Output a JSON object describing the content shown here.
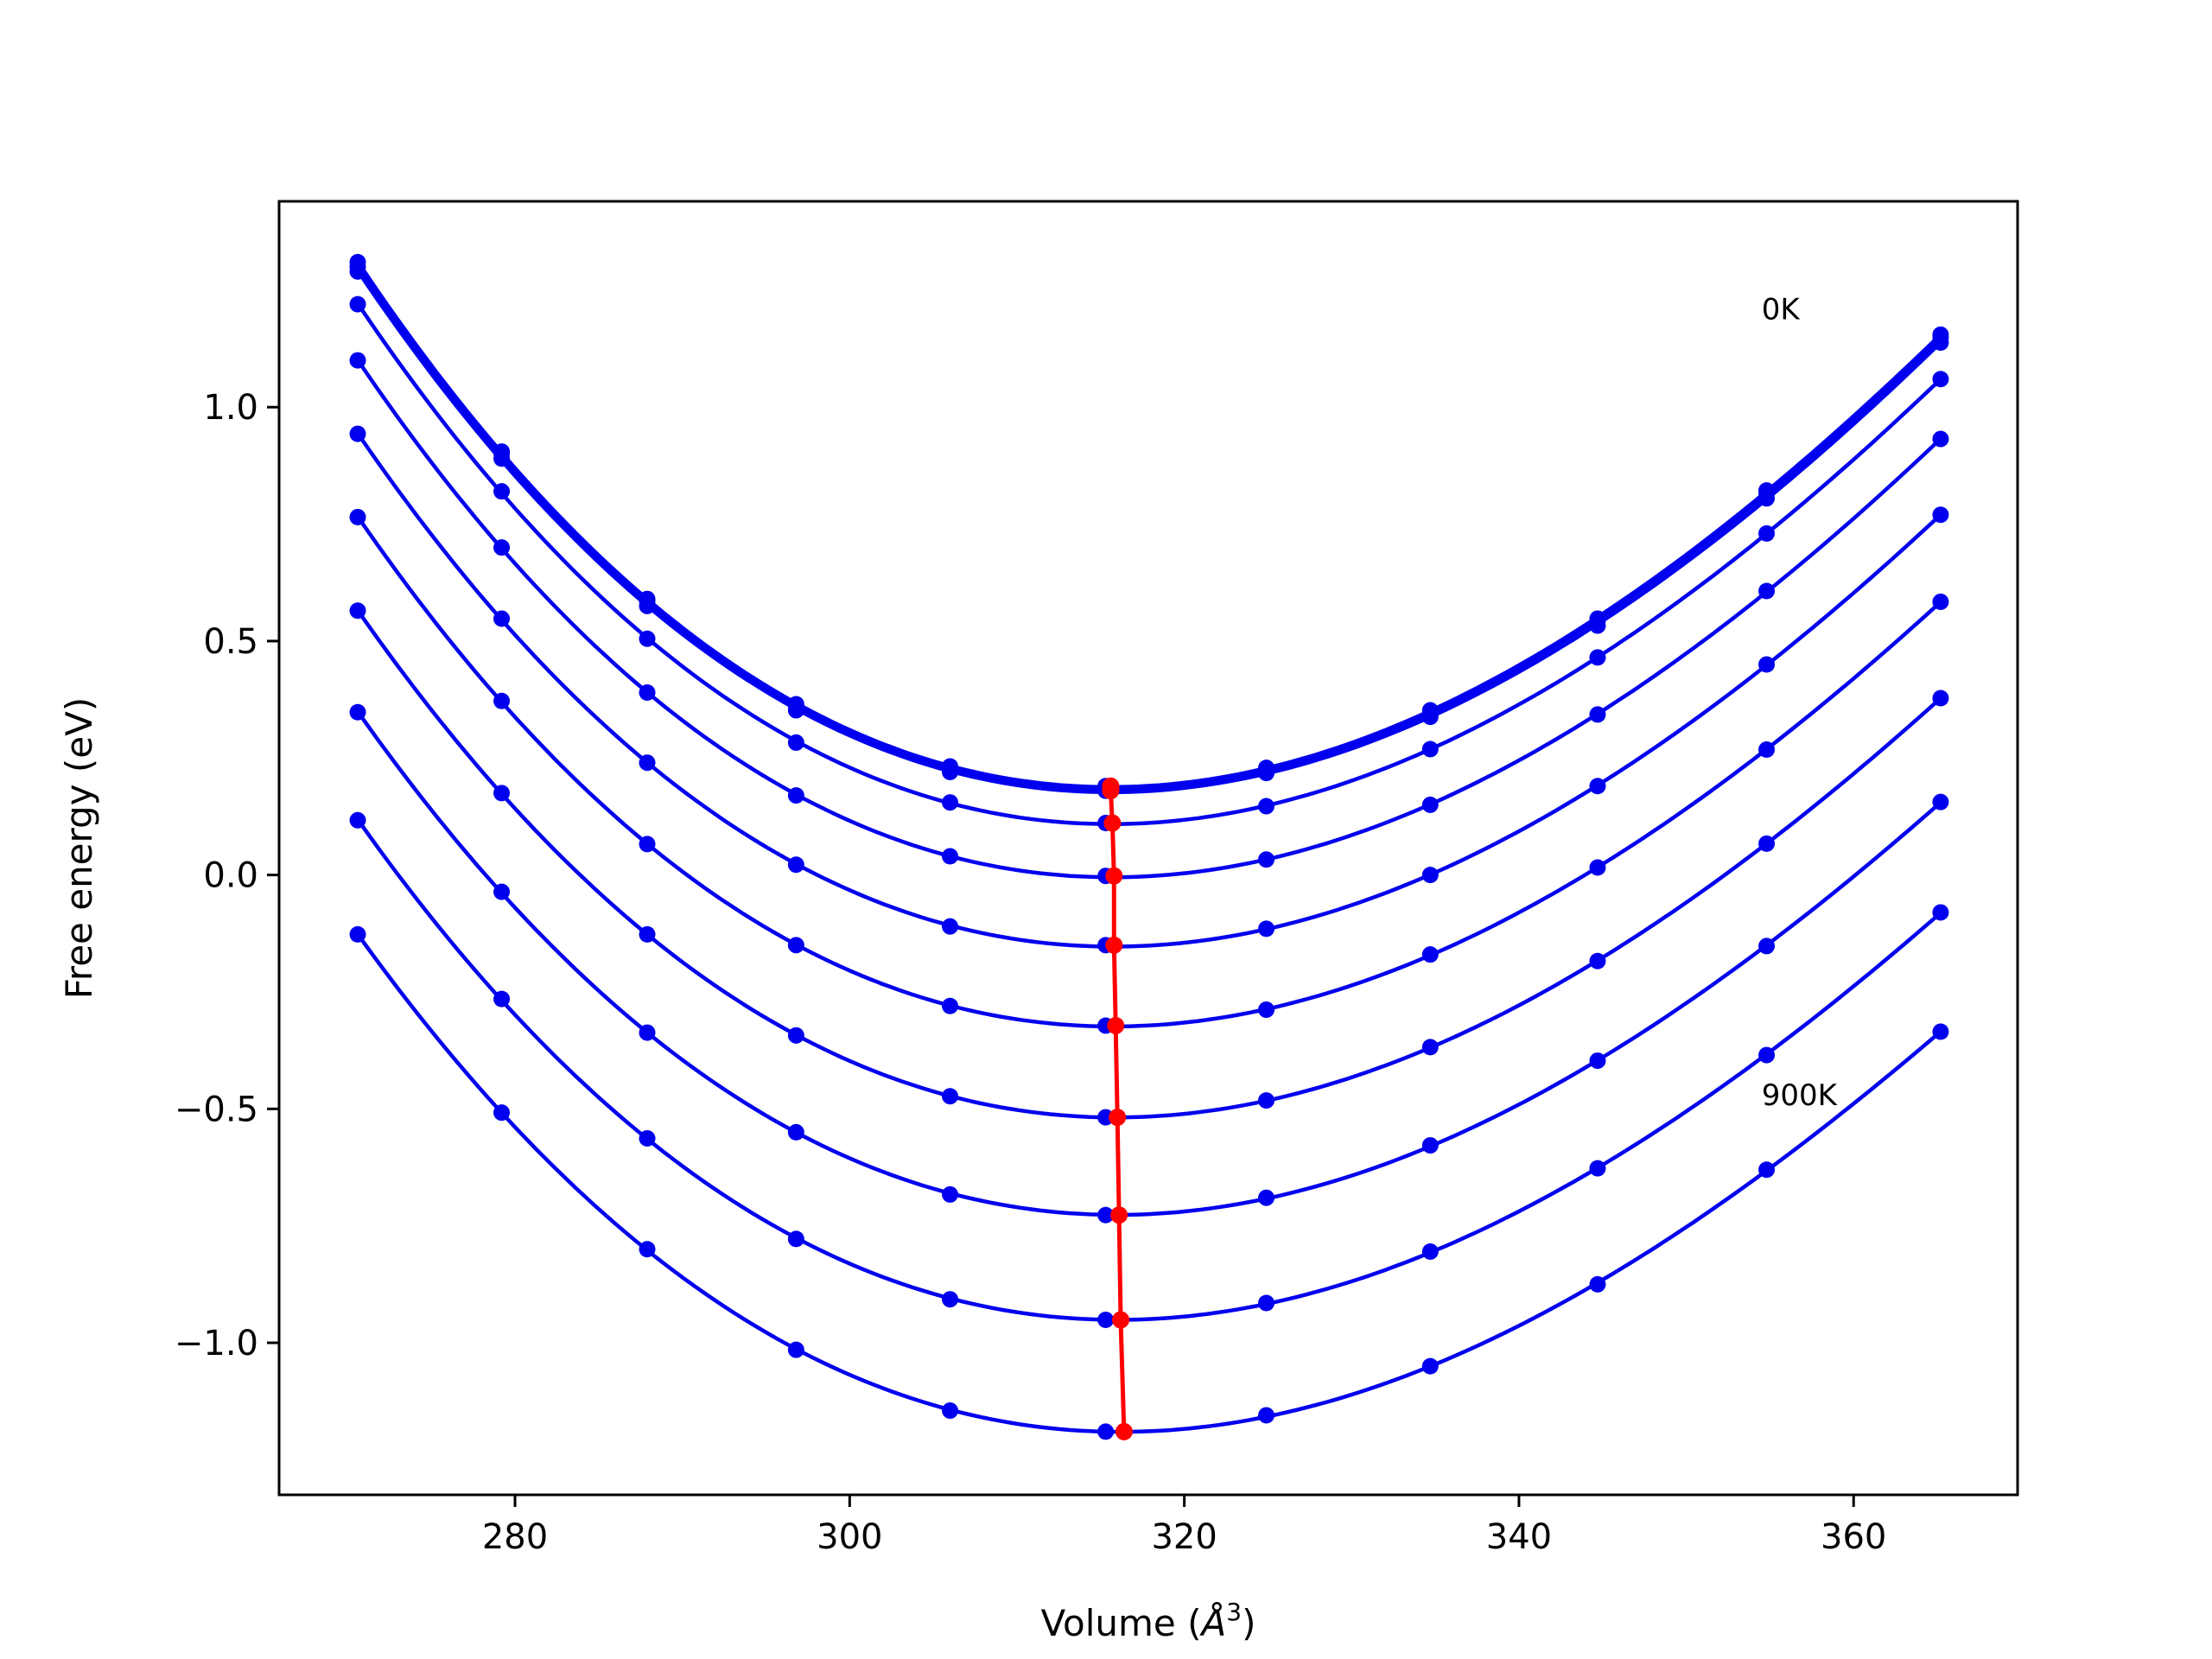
{
  "chart_data": {
    "type": "line",
    "title": "",
    "xlabel_main": "Volume (",
    "xlabel_unit": "Å",
    "xlabel_sup": "3",
    "xlabel_close": ")",
    "ylabel": "Free energy (eV)",
    "xlim": [
      265.9,
      369.8
    ],
    "ylim": [
      -1.325,
      1.44
    ],
    "xticks": [
      280,
      300,
      320,
      340,
      360
    ],
    "xtick_labels": [
      "280",
      "300",
      "320",
      "340",
      "360"
    ],
    "yticks": [
      -1.0,
      -0.5,
      0.0,
      0.5,
      1.0
    ],
    "ytick_labels": [
      "−1.0",
      "−0.5",
      "0.0",
      "0.5",
      "1.0"
    ],
    "grid": false,
    "annotations": [
      {
        "text": "0K",
        "x": 354.5,
        "y": 1.21
      },
      {
        "text": "900K",
        "x": 354.5,
        "y": -0.47
      }
    ],
    "x": [
      270.6,
      279.2,
      287.9,
      296.8,
      306.0,
      315.3,
      324.9,
      334.7,
      344.7,
      354.8,
      365.2
    ],
    "series": [
      {
        "values": [
          1.31,
          0.905,
          0.59,
          0.365,
          0.232,
          0.19,
          0.229,
          0.352,
          0.548,
          0.822,
          1.155
        ]
      },
      {
        "values": [
          1.3,
          0.9,
          0.585,
          0.36,
          0.228,
          0.188,
          0.225,
          0.347,
          0.543,
          0.815,
          1.148
        ]
      },
      {
        "values": [
          1.29,
          0.89,
          0.575,
          0.352,
          0.22,
          0.18,
          0.218,
          0.338,
          0.533,
          0.805,
          1.138
        ]
      },
      {
        "values": [
          1.22,
          0.82,
          0.505,
          0.283,
          0.155,
          0.111,
          0.147,
          0.269,
          0.465,
          0.73,
          1.06
        ]
      },
      {
        "values": [
          1.1,
          0.7,
          0.39,
          0.17,
          0.04,
          -0.002,
          0.033,
          0.15,
          0.343,
          0.607,
          0.932
        ]
      },
      {
        "values": [
          0.943,
          0.548,
          0.24,
          0.022,
          -0.11,
          -0.15,
          -0.115,
          0.0,
          0.19,
          0.45,
          0.77
        ]
      },
      {
        "values": [
          0.765,
          0.372,
          0.066,
          -0.15,
          -0.28,
          -0.322,
          -0.288,
          -0.17,
          0.016,
          0.268,
          0.584
        ]
      },
      {
        "values": [
          0.565,
          0.175,
          -0.127,
          -0.343,
          -0.473,
          -0.518,
          -0.482,
          -0.368,
          -0.184,
          0.067,
          0.378
        ]
      },
      {
        "values": [
          0.348,
          -0.036,
          -0.337,
          -0.55,
          -0.683,
          -0.727,
          -0.69,
          -0.578,
          -0.397,
          -0.152,
          0.156
        ]
      },
      {
        "values": [
          0.117,
          -0.265,
          -0.563,
          -0.778,
          -0.907,
          -0.951,
          -0.915,
          -0.805,
          -0.627,
          -0.385,
          -0.08
        ]
      },
      {
        "values": [
          -0.127,
          -0.508,
          -0.8,
          -1.015,
          -1.145,
          -1.19,
          -1.155,
          -1.05,
          -0.875,
          -0.63,
          -0.335
        ]
      }
    ],
    "minima": {
      "x": [
        315.6,
        315.6,
        315.6,
        315.7,
        315.8,
        315.8,
        315.9,
        316.0,
        316.1,
        316.2,
        316.4
      ],
      "y": [
        0.19,
        0.188,
        0.18,
        0.111,
        -0.002,
        -0.15,
        -0.322,
        -0.518,
        -0.727,
        -0.951,
        -1.19
      ]
    },
    "colors": {
      "curves": "#0000ee",
      "minima": "#ff0000",
      "axes": "#000000"
    }
  }
}
